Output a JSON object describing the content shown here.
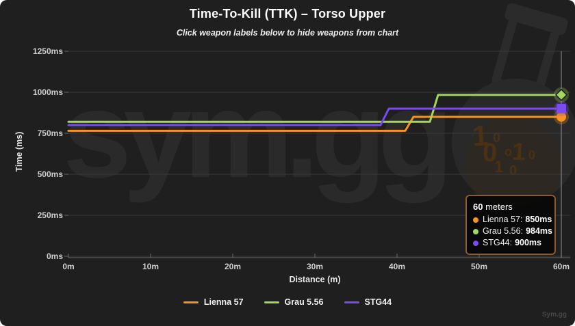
{
  "header": {
    "title": "Time-To-Kill (TTK) – Torso Upper",
    "subtitle": "Click weapon labels below to hide weapons from chart"
  },
  "watermark": {
    "text": "sym.gg",
    "digits": [
      "1",
      "0",
      "0",
      "o",
      "1",
      "0",
      "1",
      "0"
    ]
  },
  "chart_data": {
    "type": "line",
    "title": "Time-To-Kill (TTK) – Torso Upper",
    "xlabel": "Distance (m)",
    "ylabel": "Time (ms)",
    "xlim": [
      0,
      60
    ],
    "ylim": [
      0,
      1250
    ],
    "grid": true,
    "legend_position": "bottom",
    "x_tick_values": [
      0,
      10,
      20,
      30,
      40,
      50,
      60
    ],
    "x_tick_labels": [
      "0m",
      "10m",
      "20m",
      "30m",
      "40m",
      "50m",
      "60m"
    ],
    "y_tick_values": [
      0,
      250,
      500,
      750,
      1000,
      1250
    ],
    "y_tick_labels": [
      "0ms",
      "250ms",
      "500ms",
      "750ms",
      "1000ms",
      "1250ms"
    ],
    "crosshair_m": 60,
    "series": [
      {
        "name": "Lienna 57",
        "color": "#F7941D",
        "marker": "circle",
        "points": [
          [
            0,
            765
          ],
          [
            41,
            765
          ],
          [
            42,
            850
          ],
          [
            60,
            850
          ]
        ]
      },
      {
        "name": "Grau 5.56",
        "color": "#A4D65E",
        "marker": "diamond",
        "points": [
          [
            0,
            820
          ],
          [
            44,
            820
          ],
          [
            45,
            984
          ],
          [
            60,
            984
          ]
        ]
      },
      {
        "name": "STG44",
        "color": "#7A4BF0",
        "marker": "square",
        "points": [
          [
            0,
            800
          ],
          [
            38,
            800
          ],
          [
            39,
            900
          ],
          [
            60,
            900
          ]
        ]
      }
    ]
  },
  "tooltip": {
    "distance": "60",
    "unit": " meters",
    "rows": [
      {
        "label": "Lienna 57:",
        "value": "850ms",
        "color": "#F7941D"
      },
      {
        "label": "Grau 5.56:",
        "value": "984ms",
        "color": "#A4D65E"
      },
      {
        "label": "STG44:",
        "value": "900ms",
        "color": "#7A4BF0"
      }
    ]
  },
  "legend": {
    "items": [
      {
        "label": "Lienna 57",
        "color": "#F7941D"
      },
      {
        "label": "Grau 5.56",
        "color": "#A4D65E"
      },
      {
        "label": "STG44",
        "color": "#7A4BF0"
      }
    ]
  },
  "footer": {
    "brand": "Sym.gg"
  },
  "colors": {
    "background": "#1F1F1F",
    "gridline": "#3A3A3A",
    "axis": "#6A6A6A",
    "crosshair": "#909090",
    "tooltip_border": "#8A5C28",
    "watermark": "#2A2A2A"
  }
}
